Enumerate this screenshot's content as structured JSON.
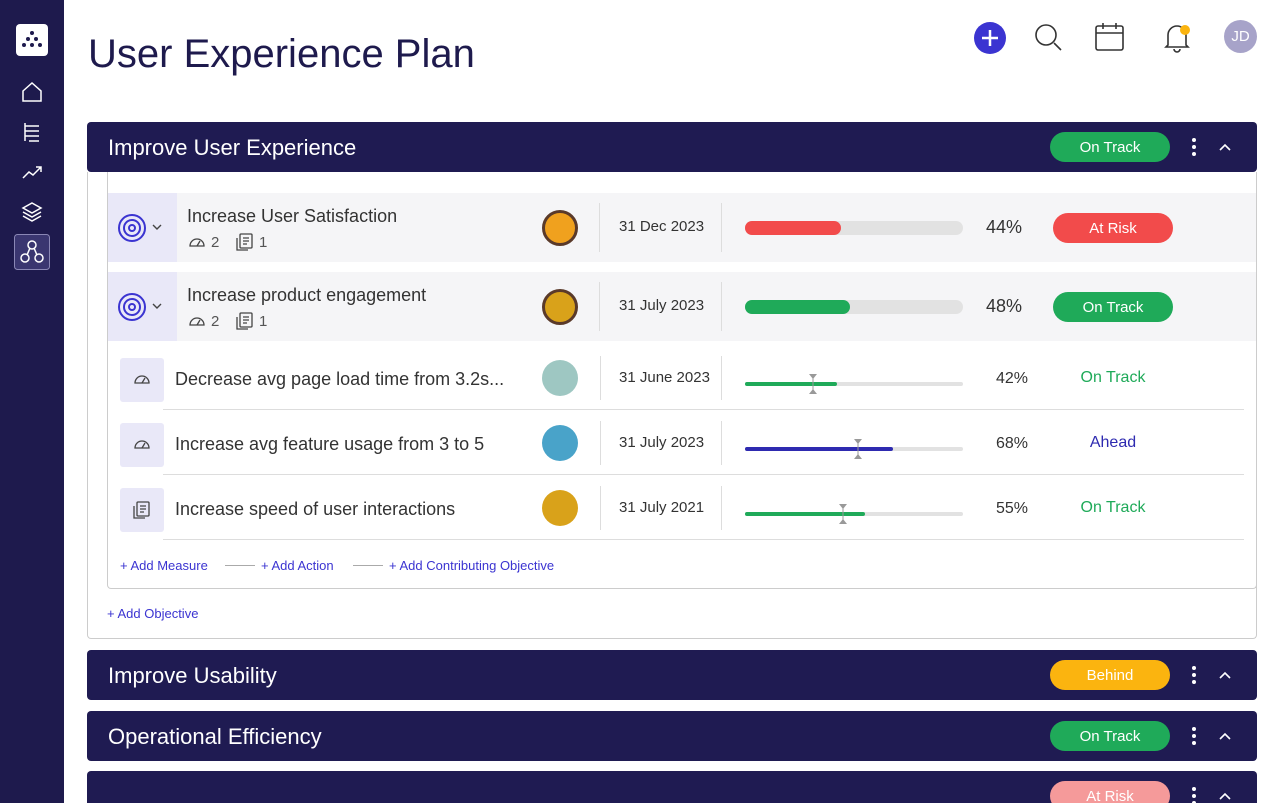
{
  "header": {
    "title": "User Experience Plan",
    "avatar": "JD"
  },
  "sections": [
    {
      "title": "Improve User Experience",
      "status": "On Track",
      "status_color": "#1faa59",
      "objectives": [
        {
          "name": "Increase User Satisfaction",
          "measures": 2,
          "actions": 1,
          "date": "31 Dec 2023",
          "progress": {
            "value": 44,
            "label": "44%"
          },
          "bar_color": "#f24b4b",
          "status": "At Risk",
          "status_color": "#f24b4b"
        },
        {
          "name": "Increase product engagement",
          "measures": 2,
          "actions": 1,
          "date": "31 July 2023",
          "progress": {
            "value": 48,
            "label": "48%"
          },
          "bar_color": "#1faa59",
          "status": "On Track",
          "status_color": "#1faa59"
        }
      ],
      "key_results": [
        {
          "name": "Decrease avg page load time from 3.2s...",
          "date": "31 June 2023",
          "progress": {
            "value": 42,
            "label": "42%"
          },
          "target": 31,
          "bar_color": "#1faa59",
          "status": "On Track",
          "status_color": "#1faa59"
        },
        {
          "name": "Increase avg feature usage from 3 to 5",
          "date": "31 July 2023",
          "progress": {
            "value": 68,
            "label": "68%"
          },
          "target": 52,
          "bar_color": "#2e2ab0",
          "status": "Ahead",
          "status_color": "#2e2ab0"
        },
        {
          "name": "Increase speed of user interactions",
          "date": "31 July 2021",
          "progress": {
            "value": 55,
            "label": "55%"
          },
          "target": 45,
          "bar_color": "#1faa59",
          "status": "On Track",
          "status_color": "#1faa59"
        }
      ],
      "links": [
        "+ Add Measure",
        "+ Add Action",
        "+ Add Contributing Objective"
      ],
      "add_objective": "+ Add Objective"
    },
    {
      "title": "Improve Usability",
      "status": "Behind",
      "status_color": "#fbb40f"
    },
    {
      "title": "Operational Efficiency",
      "status": "On Track",
      "status_color": "#1faa59"
    },
    {
      "status": "At Risk",
      "status_color": "#f59a9a"
    }
  ]
}
